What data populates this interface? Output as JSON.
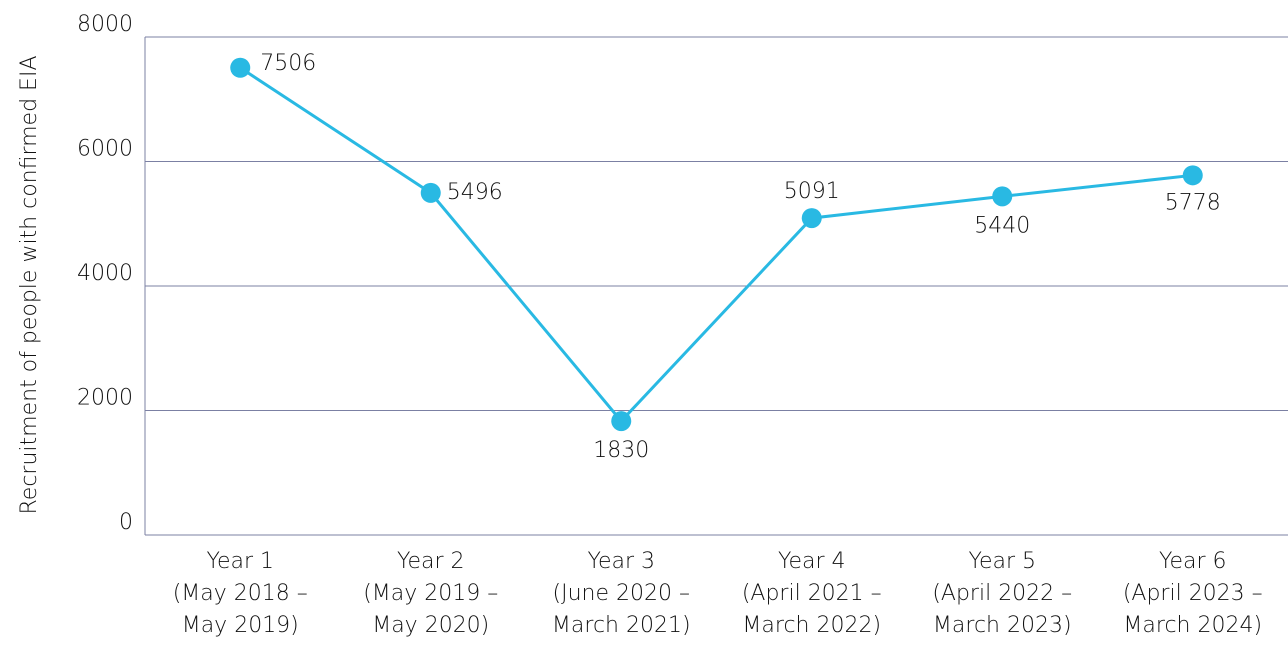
{
  "chart_data": {
    "type": "line",
    "y_label": "Recruitment of people with confirmed EIA",
    "categories": [
      "Year 1\n(May 2018 –\nMay 2019)",
      "Year 2\n(May 2019 –\nMay 2020)",
      "Year 3\n(June 2020 –\nMarch 2021)",
      "Year 4\n(April 2021 –\nMarch 2022)",
      "Year 5\n(April 2022 –\nMarch 2023)",
      "Year 6\n(April 2023 –\nMarch 2024)"
    ],
    "values": [
      7506,
      5496,
      1830,
      5091,
      5440,
      5778
    ],
    "color": "#29b9e3",
    "ylim": [
      0,
      8000
    ],
    "yticks": [
      0,
      2000,
      4000,
      6000,
      8000
    ],
    "grid": true
  }
}
